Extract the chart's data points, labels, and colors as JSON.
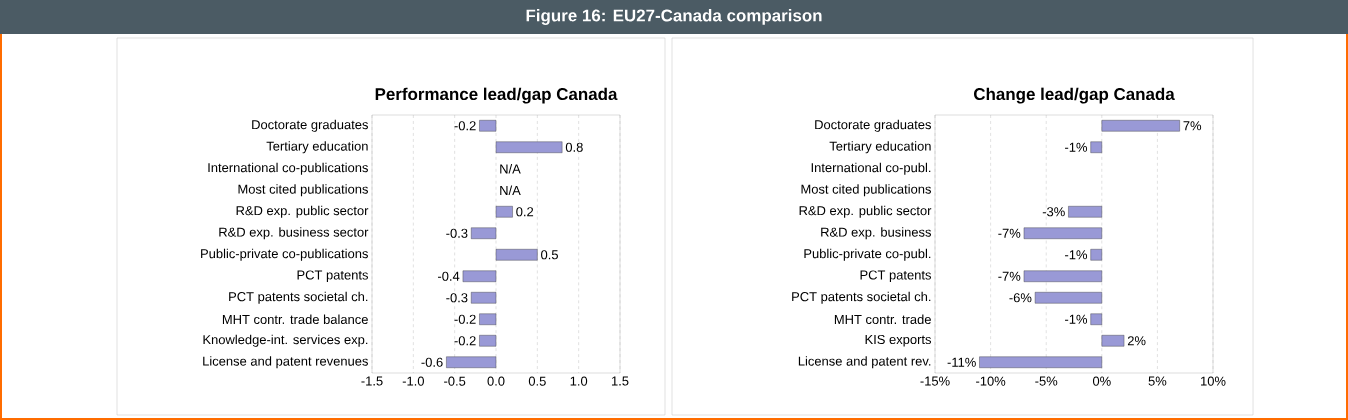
{
  "chart_data": [
    {
      "type": "bar",
      "orientation": "horizontal",
      "title": "Performance lead/gap Canada",
      "annotations": [
        "Figure 16: EU27-Canada comparison"
      ],
      "categories": [
        "Doctorate graduates",
        "Tertiary education",
        "International co-publications",
        "Most cited publications",
        "R&D exp. public sector",
        "R&D exp. business sector",
        "Public-private co-publications",
        "PCT patents",
        "PCT patents societal ch.",
        "MHT contr. trade balance",
        "Knowledge-int. services exp.",
        "License and patent revenues"
      ],
      "values": [
        -0.2,
        0.8,
        null,
        null,
        0.2,
        -0.3,
        0.5,
        -0.4,
        -0.3,
        -0.2,
        -0.2,
        -0.6
      ],
      "value_labels": [
        "-0.2",
        "0.8",
        "N/A",
        "N/A",
        "0.2",
        "-0.3",
        "0.5",
        "-0.4",
        "-0.3",
        "-0.2",
        "-0.2",
        "-0.6"
      ],
      "color": "#9999d6",
      "xlim": [
        -1.5,
        1.5
      ],
      "xticks": [
        -1.5,
        {
          "value": -1,
          "label": "-1.0"
        },
        -0.5,
        {
          "value": 0,
          "label": "0.0"
        },
        0.5,
        {
          "value": 1,
          "label": "1.0"
        },
        1.5
      ],
      "grid": "x"
    },
    {
      "type": "bar",
      "orientation": "horizontal",
      "title": "Change lead/gap Canada",
      "categories": [
        "Doctorate graduates",
        "Tertiary education",
        "International co-publ.",
        "Most cited publications",
        "R&D exp. public sector",
        "R&D exp. business",
        "Public-private co-publ.",
        "PCT patents",
        "PCT patents societal ch.",
        "MHT contr. trade",
        "KIS exports",
        "License and patent rev."
      ],
      "values": [
        7,
        -1,
        null,
        null,
        -3,
        -7,
        -1,
        -7,
        -6,
        -1,
        2,
        -11
      ],
      "value_labels": [
        "7%",
        "-1%",
        null,
        null,
        "-3%",
        "-7%",
        "-1%",
        "-7%",
        "-6%",
        "-1%",
        "2%",
        "-11%"
      ],
      "color": "#9999d6",
      "xlim": [
        -15,
        10
      ],
      "xticks": [
        {
          "value": -15,
          "label": "-15%"
        },
        {
          "value": -10,
          "label": "-10%"
        },
        {
          "value": -5,
          "label": "-5%"
        },
        {
          "value": 0,
          "label": "0%"
        },
        {
          "value": 5,
          "label": "5%"
        },
        {
          "value": 10,
          "label": "10%"
        }
      ],
      "grid": "x"
    }
  ]
}
